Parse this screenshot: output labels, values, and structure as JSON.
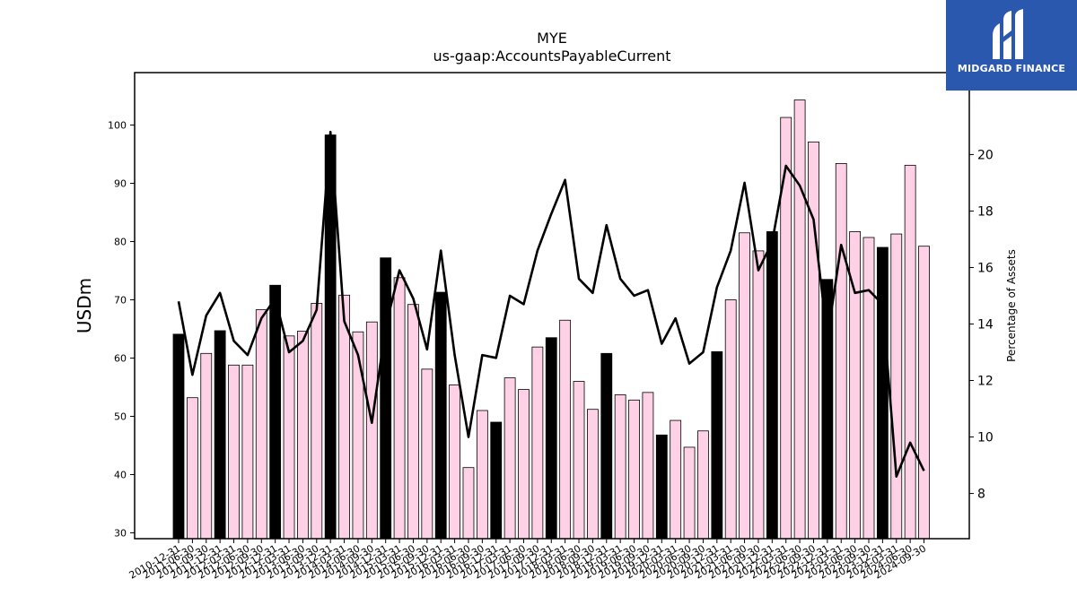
{
  "branding": {
    "logo_text": "MIDGARD FINANCE",
    "logo_bg": "#2a58ae"
  },
  "chart_data": {
    "type": "bar",
    "title": "MYE",
    "subtitle": "us-gaap:AccountsPayableCurrent",
    "ylabel": "USDm",
    "y2label": "Percentage of Assets",
    "ylim": [
      29,
      109
    ],
    "y2lim": [
      6.4,
      22.9
    ],
    "yticks": [
      30,
      40,
      50,
      60,
      70,
      80,
      90,
      100
    ],
    "y2ticks": [
      8,
      10,
      12,
      14,
      16,
      18,
      20
    ],
    "grid": false,
    "colors": {
      "annual_bar": "#000000",
      "interim_bar": "#ffd1e6",
      "bar_edge": "#000000",
      "line": "#000000"
    },
    "categories": [
      "2010-12-31",
      "2011-06-30",
      "2011-09-30",
      "2011-12-31",
      "2012-03-31",
      "2012-06-30",
      "2012-09-30",
      "2012-12-31",
      "2013-03-31",
      "2013-06-30",
      "2013-09-30",
      "2013-12-31",
      "2014-03-31",
      "2014-06-30",
      "2014-09-30",
      "2014-12-31",
      "2015-03-31",
      "2015-06-30",
      "2015-09-30",
      "2015-12-31",
      "2016-03-31",
      "2016-06-30",
      "2016-09-30",
      "2016-12-31",
      "2017-03-31",
      "2017-06-30",
      "2017-09-30",
      "2017-12-31",
      "2018-03-31",
      "2018-06-30",
      "2018-09-30",
      "2018-12-31",
      "2019-03-31",
      "2019-06-30",
      "2019-09-30",
      "2019-12-31",
      "2020-03-31",
      "2020-06-30",
      "2020-09-30",
      "2020-12-31",
      "2021-03-31",
      "2021-06-30",
      "2021-09-30",
      "2021-12-31",
      "2022-03-31",
      "2022-06-30",
      "2022-09-30",
      "2022-12-31",
      "2023-03-31",
      "2023-06-30",
      "2023-09-30",
      "2023-12-31",
      "2024-03-31",
      "2024-06-30",
      "2024-09-30"
    ],
    "series": [
      {
        "kind": "bar",
        "values": [
          64.1,
          53.2,
          60.8,
          64.7,
          58.8,
          58.8,
          68.3,
          72.5,
          63.8,
          64.6,
          69.4,
          98.3,
          70.8,
          64.5,
          66.2,
          77.2,
          73.8,
          69.2,
          58.1,
          71.3,
          55.4,
          41.2,
          51.0,
          49.0,
          56.6,
          54.6,
          61.9,
          63.5,
          66.5,
          56.0,
          51.2,
          60.8,
          53.7,
          52.8,
          54.1,
          46.8,
          49.3,
          44.7,
          47.5,
          61.1,
          70.0,
          81.5,
          78.4,
          81.7,
          101.3,
          104.3,
          97.1,
          73.5,
          93.4,
          81.7,
          80.7,
          79.0,
          81.3,
          93.1,
          79.2
        ],
        "annual": [
          true,
          false,
          false,
          true,
          false,
          false,
          false,
          true,
          false,
          false,
          false,
          true,
          false,
          false,
          false,
          true,
          false,
          false,
          false,
          true,
          false,
          false,
          false,
          true,
          false,
          false,
          false,
          true,
          false,
          false,
          false,
          true,
          false,
          false,
          false,
          true,
          false,
          false,
          false,
          true,
          false,
          false,
          false,
          true,
          false,
          false,
          false,
          true,
          false,
          false,
          false,
          true,
          false,
          false,
          false
        ]
      },
      {
        "kind": "line",
        "axis": "right",
        "values": [
          14.8,
          12.2,
          14.3,
          15.1,
          13.4,
          12.9,
          14.2,
          14.9,
          13.0,
          13.4,
          14.5,
          20.8,
          14.1,
          12.9,
          10.5,
          13.9,
          15.9,
          14.9,
          13.1,
          16.6,
          12.9,
          10.0,
          12.9,
          12.8,
          15.0,
          14.7,
          16.6,
          17.9,
          19.1,
          15.6,
          15.1,
          17.5,
          15.6,
          15.0,
          15.2,
          13.3,
          14.2,
          12.6,
          13.0,
          15.3,
          16.6,
          19.0,
          15.9,
          16.9,
          19.6,
          18.9,
          17.7,
          13.5,
          16.8,
          15.1,
          15.2,
          14.7,
          8.6,
          9.8,
          8.8
        ]
      }
    ]
  }
}
